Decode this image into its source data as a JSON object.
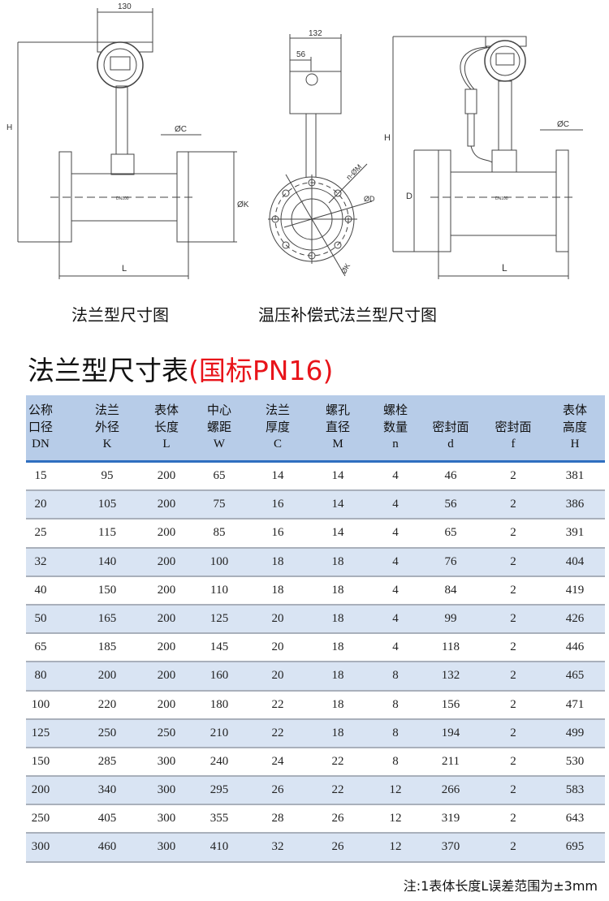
{
  "drawings": {
    "flange": {
      "caption": "法兰型尺寸图",
      "dims": {
        "width": "130",
        "height": "H",
        "flange_thickness": "ØC",
        "flange_outer": "ØK",
        "length": "L",
        "nameplate": "DN100"
      }
    },
    "side": {
      "dims": {
        "width": "132",
        "offset": "56",
        "bolt_holes": "n-ØM",
        "seal": "ØD",
        "pitch": "ØK"
      }
    },
    "compensated": {
      "caption": "温压补偿式法兰型尺寸图",
      "dims": {
        "height": "H",
        "diameter": "D",
        "flange_thickness": "ØC",
        "length": "L",
        "nameplate": "DN100"
      }
    }
  },
  "title": {
    "main": "法兰型尺寸表",
    "sub": "(国标PN16)"
  },
  "colors": {
    "header_bg": "#b7cce8",
    "header_line": "#2f6fc0",
    "alt_row": "#d9e4f3",
    "title_accent": "#e8141a"
  },
  "table": {
    "headers": [
      {
        "l1": "公称",
        "l2": "口径",
        "sym": "DN"
      },
      {
        "l1": "法兰",
        "l2": "外径",
        "sym": "K"
      },
      {
        "l1": "表体",
        "l2": "长度",
        "sym": "L"
      },
      {
        "l1": "中心",
        "l2": "螺距",
        "sym": "W"
      },
      {
        "l1": "法兰",
        "l2": "厚度",
        "sym": "C"
      },
      {
        "l1": "螺孔",
        "l2": "直径",
        "sym": "M"
      },
      {
        "l1": "螺栓",
        "l2": "数量",
        "sym": "n"
      },
      {
        "l1": "",
        "l2": "密封面",
        "sym": "d"
      },
      {
        "l1": "",
        "l2": "密封面",
        "sym": "f"
      },
      {
        "l1": "表体",
        "l2": "高度",
        "sym": "H"
      }
    ],
    "rows": [
      [
        "15",
        "95",
        "200",
        "65",
        "14",
        "14",
        "4",
        "46",
        "2",
        "381"
      ],
      [
        "20",
        "105",
        "200",
        "75",
        "16",
        "14",
        "4",
        "56",
        "2",
        "386"
      ],
      [
        "25",
        "115",
        "200",
        "85",
        "16",
        "14",
        "4",
        "65",
        "2",
        "391"
      ],
      [
        "32",
        "140",
        "200",
        "100",
        "18",
        "18",
        "4",
        "76",
        "2",
        "404"
      ],
      [
        "40",
        "150",
        "200",
        "110",
        "18",
        "18",
        "4",
        "84",
        "2",
        "419"
      ],
      [
        "50",
        "165",
        "200",
        "125",
        "20",
        "18",
        "4",
        "99",
        "2",
        "426"
      ],
      [
        "65",
        "185",
        "200",
        "145",
        "20",
        "18",
        "4",
        "118",
        "2",
        "446"
      ],
      [
        "80",
        "200",
        "200",
        "160",
        "20",
        "18",
        "8",
        "132",
        "2",
        "465"
      ],
      [
        "100",
        "220",
        "200",
        "180",
        "22",
        "18",
        "8",
        "156",
        "2",
        "471"
      ],
      [
        "125",
        "250",
        "250",
        "210",
        "22",
        "18",
        "8",
        "194",
        "2",
        "499"
      ],
      [
        "150",
        "285",
        "300",
        "240",
        "24",
        "22",
        "8",
        "211",
        "2",
        "530"
      ],
      [
        "200",
        "340",
        "300",
        "295",
        "26",
        "22",
        "12",
        "266",
        "2",
        "583"
      ],
      [
        "250",
        "405",
        "300",
        "355",
        "28",
        "26",
        "12",
        "319",
        "2",
        "643"
      ],
      [
        "300",
        "460",
        "300",
        "410",
        "32",
        "26",
        "12",
        "370",
        "2",
        "695"
      ]
    ]
  },
  "note": "注:1表体长度L误差范围为±3mm"
}
